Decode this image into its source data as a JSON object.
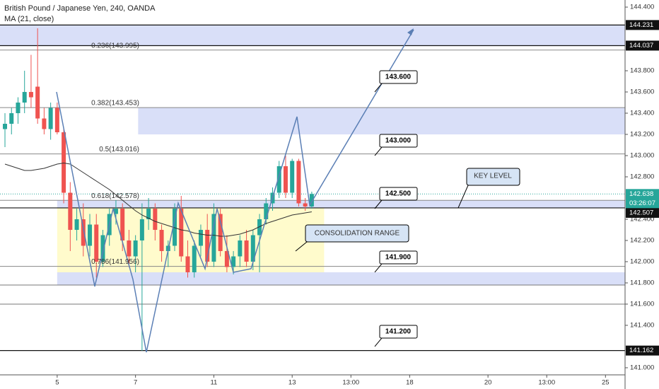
{
  "chart_data": {
    "type": "candlestick",
    "title": "British Pound / Japanese Yen, 240, OANDA",
    "subtitle": "MA (21, close)",
    "x": [
      0,
      1,
      2,
      3,
      4,
      5,
      6,
      7,
      8,
      9,
      10,
      11,
      12,
      13,
      14,
      15,
      16,
      17,
      18,
      19,
      20,
      21,
      22,
      23,
      24,
      25,
      26,
      27,
      28,
      29,
      30,
      31,
      32,
      33,
      34,
      35,
      36,
      37,
      38,
      39,
      40,
      41,
      42,
      43,
      44,
      45,
      46,
      47
    ],
    "open": [
      143.25,
      143.3,
      143.4,
      143.5,
      143.6,
      143.65,
      143.35,
      143.25,
      143.45,
      143.22,
      142.65,
      142.3,
      142.4,
      142.15,
      142.35,
      142.0,
      142.25,
      142.45,
      142.5,
      142.2,
      142.05,
      142.2,
      142.4,
      142.5,
      142.3,
      142.1,
      142.15,
      142.5,
      142.05,
      141.9,
      142.15,
      142.3,
      142.0,
      142.45,
      142.1,
      141.95,
      142.05,
      142.2,
      142.0,
      142.25,
      142.4,
      142.55,
      142.65,
      142.9,
      142.65,
      142.95,
      142.55,
      142.52
    ],
    "high": [
      143.4,
      143.45,
      143.55,
      143.8,
      143.95,
      144.2,
      143.45,
      143.5,
      143.5,
      143.25,
      142.75,
      142.5,
      142.55,
      142.45,
      142.45,
      142.3,
      142.5,
      142.58,
      142.55,
      142.3,
      142.25,
      142.55,
      142.6,
      142.55,
      142.35,
      142.2,
      142.55,
      142.62,
      142.2,
      142.2,
      142.35,
      142.45,
      142.55,
      142.5,
      142.25,
      142.1,
      142.25,
      142.3,
      142.3,
      142.45,
      142.6,
      142.7,
      142.95,
      143.0,
      142.97,
      142.97,
      142.6,
      142.66
    ],
    "low": [
      143.08,
      143.2,
      143.3,
      143.4,
      143.45,
      143.3,
      143.2,
      143.15,
      143.2,
      142.55,
      142.1,
      142.2,
      142.05,
      142.05,
      141.85,
      141.95,
      142.15,
      142.35,
      142.1,
      141.95,
      141.9,
      141.16,
      142.3,
      142.2,
      142.0,
      141.95,
      142.1,
      142.0,
      141.85,
      141.85,
      142.05,
      141.95,
      141.95,
      142.05,
      141.9,
      141.88,
      141.95,
      141.95,
      141.92,
      141.9,
      142.35,
      142.48,
      142.6,
      142.6,
      142.6,
      142.52,
      142.48,
      142.5
    ],
    "close": [
      143.3,
      143.4,
      143.5,
      143.6,
      143.55,
      143.35,
      143.25,
      143.45,
      143.22,
      142.65,
      142.3,
      142.4,
      142.15,
      142.35,
      142.0,
      142.25,
      142.45,
      142.5,
      142.2,
      142.05,
      142.2,
      142.4,
      142.5,
      142.3,
      142.1,
      142.15,
      142.5,
      142.05,
      141.9,
      142.15,
      142.3,
      142.0,
      142.45,
      142.1,
      141.95,
      142.05,
      142.2,
      142.0,
      142.25,
      142.4,
      142.55,
      142.65,
      142.9,
      142.65,
      142.95,
      142.55,
      142.52,
      142.638
    ],
    "up_color": "#26a69a",
    "down_color": "#ef5350",
    "ma": {
      "name": "MA (21, close)",
      "color": "#333333",
      "values": [
        142.92,
        142.9,
        142.88,
        142.86,
        142.86,
        142.87,
        142.88,
        142.9,
        142.92,
        142.93,
        142.92,
        142.88,
        142.84,
        142.8,
        142.76,
        142.72,
        142.68,
        142.63,
        142.58,
        142.53,
        142.48,
        142.44,
        142.41,
        142.38,
        142.36,
        142.34,
        142.32,
        142.3,
        142.29,
        142.27,
        142.26,
        142.25,
        142.25,
        142.24,
        142.24,
        142.25,
        142.26,
        142.28,
        142.3,
        142.33,
        142.36,
        142.38,
        142.4,
        142.42,
        142.44,
        142.45,
        142.46,
        142.47
      ]
    },
    "xlim": [
      -0.76,
      95
    ],
    "ylim": [
      140.933,
      144.467
    ],
    "xticks": [
      {
        "value": 8,
        "label": "5"
      },
      {
        "value": 20,
        "label": "7"
      },
      {
        "value": 32,
        "label": "11"
      },
      {
        "value": 44,
        "label": "13"
      },
      {
        "value": 53,
        "label": "13:00"
      },
      {
        "value": 62,
        "label": "18"
      },
      {
        "value": 74,
        "label": "20"
      },
      {
        "value": 83,
        "label": "13:00"
      },
      {
        "value": 92,
        "label": "25"
      }
    ],
    "yticks": [
      {
        "value": 141,
        "label": "141.000"
      },
      {
        "value": 141.4,
        "label": "141.400"
      },
      {
        "value": 141.6,
        "label": "141.600"
      },
      {
        "value": 141.8,
        "label": "141.800"
      },
      {
        "value": 142,
        "label": "142.000"
      },
      {
        "value": 142.2,
        "label": "142.200"
      },
      {
        "value": 142.4,
        "label": "142.400"
      },
      {
        "value": 142.8,
        "label": "142.800"
      },
      {
        "value": 143,
        "label": "143.000"
      },
      {
        "value": 143.2,
        "label": "143.200"
      },
      {
        "value": 143.4,
        "label": "143.400"
      },
      {
        "value": 143.6,
        "label": "143.600"
      },
      {
        "value": 143.8,
        "label": "143.800"
      },
      {
        "value": 144.4,
        "label": "144.400"
      }
    ],
    "levels": [
      144.231,
      144.037,
      142.507,
      141.162
    ],
    "current_price": 142.638,
    "countdown": "03:26:07",
    "lines": [
      141.78,
      141.6
    ],
    "fib": [
      {
        "value": 143.995,
        "label": "0.236(143.995)"
      },
      {
        "value": 143.453,
        "label": "0.382(143.453)"
      },
      {
        "value": 143.016,
        "label": "0.5(143.016)"
      },
      {
        "value": 142.578,
        "label": "0.618(142.578)"
      },
      {
        "value": 141.956,
        "label": "0.786(141.956)"
      }
    ],
    "zones": [
      {
        "y": [
          144.037,
          144.231
        ],
        "x": [
          -0.76,
          95
        ]
      },
      {
        "y": [
          143.2,
          143.453
        ],
        "x": [
          20.4,
          95
        ]
      },
      {
        "y": [
          142.507,
          142.578
        ],
        "x": [
          8,
          95
        ]
      },
      {
        "y": [
          141.78,
          141.9
        ],
        "x": [
          8,
          95
        ]
      }
    ],
    "range": {
      "y": [
        141.9,
        142.507
      ],
      "x": [
        8,
        48.9
      ]
    },
    "callouts": [
      {
        "value": 143.6,
        "label": "143.600"
      },
      {
        "value": 143.0,
        "label": "143.000"
      },
      {
        "value": 142.5,
        "label": "142.500"
      },
      {
        "value": 141.9,
        "label": "141.900"
      },
      {
        "value": 141.2,
        "label": "141.200"
      }
    ],
    "annotations": [
      "KEY LEVEL",
      "CONSOLIDATION RANGE"
    ]
  }
}
